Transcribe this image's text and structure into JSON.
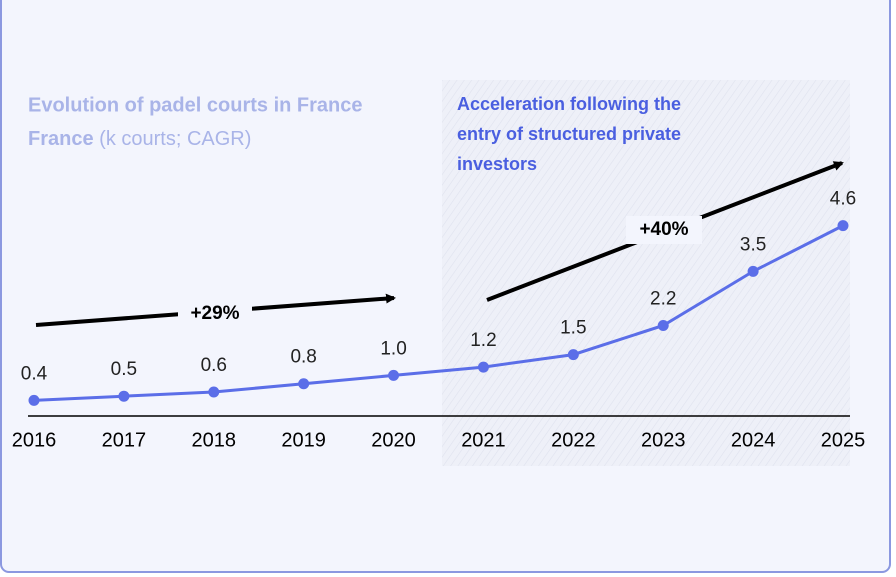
{
  "chart_data": {
    "type": "line",
    "title": "Evolution of padel courts in France",
    "title_note": "(k courts; CAGR)",
    "annotation": "Acceleration following the entry of structured private investors",
    "growth_labels": [
      "+29%",
      "+40%"
    ],
    "categories": [
      "2016",
      "2017",
      "2018",
      "2019",
      "2020",
      "2021",
      "2022",
      "2023",
      "2024",
      "2025"
    ],
    "values": [
      0.4,
      0.5,
      0.6,
      0.8,
      1.0,
      1.2,
      1.5,
      2.2,
      3.5,
      4.6
    ],
    "value_labels": [
      "0.4",
      "0.5",
      "0.6",
      "0.8",
      "1.0",
      "1.2",
      "1.5",
      "2.2",
      "3.5",
      "4.6"
    ],
    "color": "#5b6ee8",
    "ylim": [
      0,
      5
    ]
  }
}
